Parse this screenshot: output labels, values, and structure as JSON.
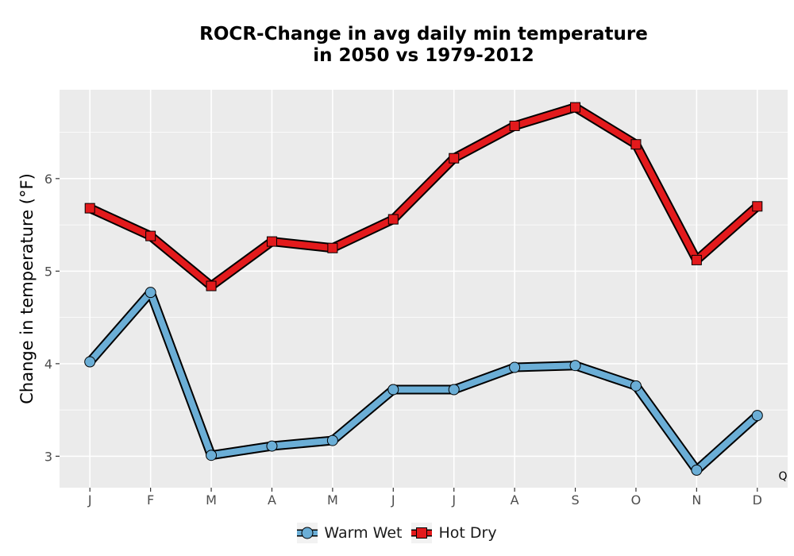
{
  "chart_data": {
    "type": "line",
    "title_lines": [
      "ROCR-Change in avg daily min temperature",
      "in 2050 vs 1979-2012"
    ],
    "xlabel": "",
    "ylabel": "Change in temperature (°F)",
    "categories": [
      "J",
      "F",
      "M",
      "A",
      "M",
      "J",
      "J",
      "A",
      "S",
      "O",
      "N",
      "D"
    ],
    "y_ticks": [
      3,
      4,
      5,
      6
    ],
    "ylim": [
      2.66,
      6.96
    ],
    "grid": true,
    "legend_position": "bottom",
    "corner_annotation": "Q",
    "series": [
      {
        "name": "Warm Wet",
        "marker": "circle",
        "color": "#6baed6",
        "values": [
          4.02,
          4.77,
          3.01,
          3.11,
          3.17,
          3.72,
          3.72,
          3.96,
          3.98,
          3.76,
          2.85,
          3.44
        ]
      },
      {
        "name": "Hot Dry",
        "marker": "square",
        "color": "#e31a1c",
        "values": [
          5.68,
          5.38,
          4.84,
          5.32,
          5.25,
          5.56,
          6.22,
          6.57,
          6.77,
          6.37,
          5.12,
          5.7
        ]
      }
    ]
  }
}
